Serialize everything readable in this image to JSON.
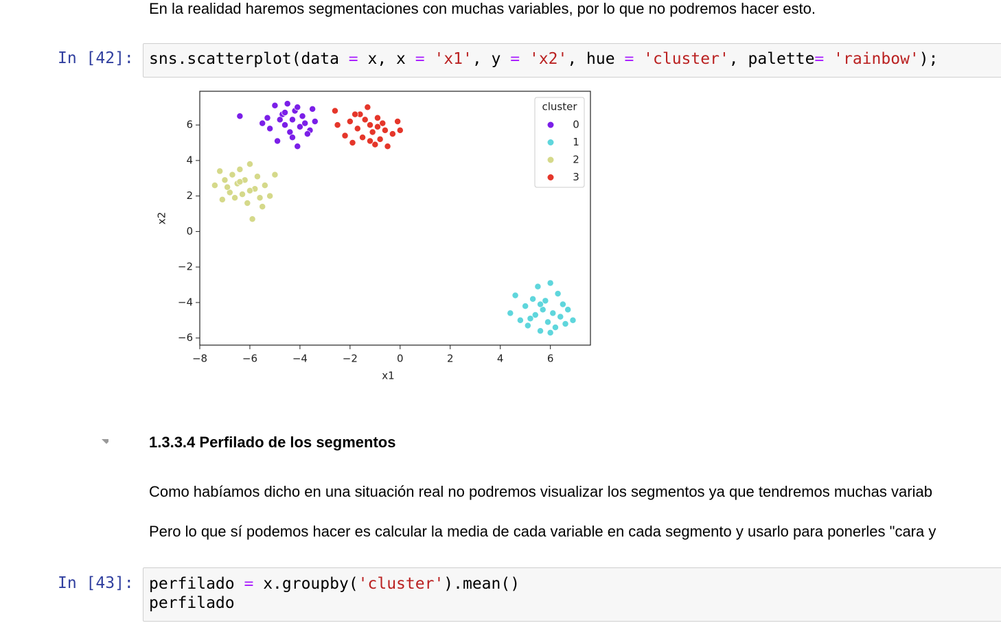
{
  "intro": "En la realidad haremos segmentaciones con muchas variables, por lo que no podremos hacer esto.",
  "cells": [
    {
      "prompt": "In [42]:",
      "lines": [
        [
          {
            "text": "sns.scatterplot(data ",
            "color": "#000000"
          },
          {
            "text": "=",
            "color": "#aa22ff"
          },
          {
            "text": " x, x ",
            "color": "#000000"
          },
          {
            "text": "=",
            "color": "#aa22ff"
          },
          {
            "text": " ",
            "color": "#000000"
          },
          {
            "text": "'x1'",
            "color": "#ba2121"
          },
          {
            "text": ", y ",
            "color": "#000000"
          },
          {
            "text": "=",
            "color": "#aa22ff"
          },
          {
            "text": " ",
            "color": "#000000"
          },
          {
            "text": "'x2'",
            "color": "#ba2121"
          },
          {
            "text": ", hue ",
            "color": "#000000"
          },
          {
            "text": "=",
            "color": "#aa22ff"
          },
          {
            "text": " ",
            "color": "#000000"
          },
          {
            "text": "'cluster'",
            "color": "#ba2121"
          },
          {
            "text": ", palette",
            "color": "#000000"
          },
          {
            "text": "=",
            "color": "#aa22ff"
          },
          {
            "text": " ",
            "color": "#000000"
          },
          {
            "text": "'rainbow'",
            "color": "#ba2121"
          },
          {
            "text": ");",
            "color": "#000000"
          }
        ]
      ]
    },
    {
      "prompt": "In [43]:",
      "lines": [
        [
          {
            "text": "perfilado ",
            "color": "#000000"
          },
          {
            "text": "=",
            "color": "#aa22ff"
          },
          {
            "text": " x.groupby(",
            "color": "#000000"
          },
          {
            "text": "'cluster'",
            "color": "#ba2121"
          },
          {
            "text": ").mean()",
            "color": "#000000"
          }
        ],
        [
          {
            "text": "perfilado",
            "color": "#000000"
          }
        ]
      ]
    }
  ],
  "heading": "1.3.3.4  Perfilado de los segmentos",
  "paragraphs": [
    "Como habíamos dicho en una situación real no podremos visualizar los segmentos ya que tendremos muchas variab",
    "Pero lo que sí podemos hacer es calcular la media de cada variable en cada segmento y usarlo para ponerles \"cara y"
  ],
  "chart_data": {
    "type": "scatter",
    "x_label": "x1",
    "y_label": "x2",
    "legend_title": "cluster",
    "legend": "upper right",
    "xlim": [
      -8.0,
      7.6
    ],
    "ylim": [
      -6.4,
      7.9
    ],
    "xticks": [
      {
        "value": -8,
        "label": "−8"
      },
      {
        "value": -6,
        "label": "−6"
      },
      {
        "value": -4,
        "label": "−4"
      },
      {
        "value": -2,
        "label": "−2"
      },
      0,
      2,
      4,
      6
    ],
    "yticks": [
      {
        "value": -6,
        "label": "−6"
      },
      {
        "value": -4,
        "label": "−4"
      },
      {
        "value": -2,
        "label": "−2"
      },
      0,
      2,
      4,
      6
    ],
    "series": [
      {
        "name": "0",
        "color": "#7b1fe8",
        "x": [
          -6.4,
          -5.5,
          -5.2,
          -5.0,
          -4.9,
          -4.7,
          -4.6,
          -4.5,
          -4.4,
          -4.3,
          -4.2,
          -4.1,
          -4.0,
          -3.9,
          -3.8,
          -3.6,
          -3.5,
          -3.4,
          -4.8,
          -4.3,
          -5.3,
          -3.7,
          -4.1,
          -4.6
        ],
        "values": [
          6.5,
          6.1,
          5.8,
          7.1,
          5.1,
          6.6,
          6.0,
          7.2,
          5.6,
          6.3,
          6.8,
          4.8,
          5.9,
          6.5,
          6.1,
          5.7,
          6.9,
          6.2,
          6.3,
          5.3,
          6.4,
          5.5,
          7.0,
          6.7
        ]
      },
      {
        "name": "1",
        "color": "#5fd6dc",
        "x": [
          4.4,
          4.6,
          4.8,
          5.0,
          5.1,
          5.3,
          5.4,
          5.5,
          5.6,
          5.7,
          5.8,
          5.9,
          6.0,
          6.1,
          6.2,
          6.3,
          6.5,
          6.6,
          6.7,
          6.9,
          5.2,
          5.6,
          6.0,
          6.4
        ],
        "values": [
          -4.6,
          -3.6,
          -5.0,
          -4.2,
          -5.3,
          -3.8,
          -4.7,
          -3.1,
          -5.6,
          -4.4,
          -3.9,
          -5.1,
          -2.9,
          -4.6,
          -5.4,
          -3.5,
          -4.1,
          -5.2,
          -4.4,
          -5.0,
          -4.9,
          -4.1,
          -5.7,
          -4.8
        ]
      },
      {
        "name": "2",
        "color": "#d5d98a",
        "x": [
          -7.4,
          -7.2,
          -7.1,
          -7.0,
          -6.8,
          -6.7,
          -6.6,
          -6.5,
          -6.4,
          -6.3,
          -6.2,
          -6.1,
          -6.0,
          -5.9,
          -5.8,
          -5.7,
          -5.6,
          -5.4,
          -5.2,
          -5.0,
          -6.0,
          -6.9,
          -6.4,
          -5.5
        ],
        "values": [
          2.6,
          3.4,
          1.8,
          2.9,
          2.2,
          3.2,
          1.9,
          2.7,
          3.5,
          2.1,
          2.9,
          1.6,
          3.8,
          0.7,
          2.4,
          3.1,
          1.9,
          2.6,
          2.0,
          3.2,
          2.3,
          2.5,
          2.8,
          1.4
        ]
      },
      {
        "name": "3",
        "color": "#e5362a",
        "x": [
          -2.6,
          -2.5,
          -2.2,
          -2.0,
          -1.9,
          -1.7,
          -1.6,
          -1.5,
          -1.3,
          -1.2,
          -1.1,
          -1.0,
          -0.9,
          -0.8,
          -0.7,
          -0.6,
          -0.5,
          -0.3,
          -0.1,
          0.0,
          -1.4,
          -1.8,
          -0.9,
          -1.2
        ],
        "values": [
          6.8,
          6.0,
          5.4,
          6.2,
          5.0,
          5.8,
          6.6,
          5.3,
          7.0,
          6.0,
          5.6,
          4.9,
          6.4,
          5.2,
          6.1,
          5.7,
          4.8,
          5.5,
          6.2,
          5.7,
          6.3,
          6.6,
          5.9,
          5.1
        ]
      }
    ]
  }
}
